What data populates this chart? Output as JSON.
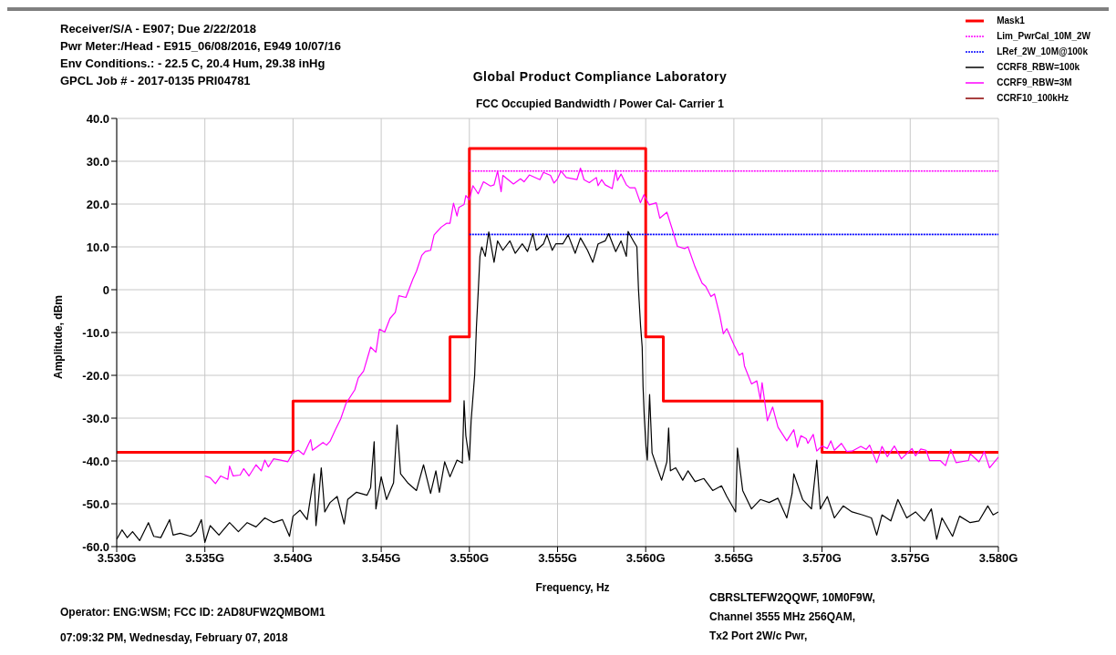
{
  "chart_data": {
    "type": "line",
    "title": "Global Product Compliance Laboratory",
    "subtitle": "FCC Occupied Bandwidth / Power Cal- Carrier 1",
    "xlabel": "Frequency, Hz",
    "ylabel": "Amplitude, dBm",
    "annotations": [
      "Receiver/S/A - E907; Due 2/22/2018",
      "Pwr Meter:/Head - E915_06/08/2016, E949 10/07/16",
      "Env Conditions.: - 22.5 C, 20.4 Hum, 29.38 inHg",
      "GPCL Job # - 2017-0135 PRI04781",
      "Operator: ENG:WSM; FCC ID: 2AD8UFW2QMBOM1",
      "07:09:32 PM, Wednesday, February 07, 2018",
      "CBRSLTEFW2QQWF, 10M0F9W,",
      "Channel 3555 MHz  256QAM,",
      "Tx2 Port  2W/c Pwr,"
    ],
    "series": [
      {
        "name": "Mask1",
        "color": "#ff0000",
        "line_style": "solid",
        "x": [
          3.53,
          3.54,
          3.54,
          3.5489,
          3.5489,
          3.55,
          3.55,
          3.56,
          3.56,
          3.561,
          3.561,
          3.57,
          3.57,
          3.58
        ],
        "values": [
          -38,
          -38,
          -26,
          -26,
          -11,
          -11,
          33,
          33,
          -11,
          -11,
          -26,
          -26,
          -38,
          -38
        ]
      },
      {
        "name": "Lim_PwrCal_10M_2W",
        "color": "#ff00ff",
        "line_style": "dotted",
        "x": [
          3.55,
          3.58
        ],
        "values": [
          27.7,
          27.7
        ]
      },
      {
        "name": "LRef_2W_10M@100k",
        "color": "#0000ff",
        "line_style": "dotted",
        "x": [
          3.55,
          3.58
        ],
        "values": [
          12.9,
          12.9
        ]
      },
      {
        "name": "CCRF8_RBW=100k",
        "color": "#000000",
        "line_style": "solid",
        "x": [
          3.53,
          3.5303,
          3.5306,
          3.5309,
          3.5313,
          3.5318,
          3.5321,
          3.5325,
          3.533,
          3.5332,
          3.5336,
          3.5342,
          3.5345,
          3.5348,
          3.535,
          3.5353,
          3.5358,
          3.5364,
          3.5369,
          3.5374,
          3.5379,
          3.5384,
          3.5389,
          3.5394,
          3.5398,
          3.54,
          3.5404,
          3.5408,
          3.5412,
          3.5413,
          3.5414,
          3.5416,
          3.5418,
          3.5421,
          3.5425,
          3.5429,
          3.5431,
          3.5436,
          3.5442,
          3.5444,
          3.5446,
          3.5447,
          3.545,
          3.5453,
          3.5457,
          3.5459,
          3.5461,
          3.5465,
          3.547,
          3.5474,
          3.5478,
          3.5481,
          3.5483,
          3.5486,
          3.5489,
          3.5493,
          3.5496,
          3.5497,
          3.5498,
          3.55,
          3.5501,
          3.5503,
          3.5504,
          3.5505,
          3.5506,
          3.5507,
          3.5509,
          3.5511,
          3.5514,
          3.5516,
          3.5519,
          3.5523,
          3.5526,
          3.553,
          3.5533,
          3.5536,
          3.5538,
          3.5542,
          3.5544,
          3.5547,
          3.5549,
          3.5553,
          3.5556,
          3.556,
          3.5563,
          3.5567,
          3.557,
          3.5573,
          3.5577,
          3.5579,
          3.5583,
          3.5586,
          3.5589,
          3.559,
          3.5593,
          3.5595,
          3.55959,
          3.55971,
          3.5598,
          3.55985,
          3.55992,
          3.56002,
          3.56009,
          3.56022,
          3.56036,
          3.5606,
          3.5609,
          3.5612,
          3.5613,
          3.5614,
          3.5617,
          3.5621,
          3.5624,
          3.5628,
          3.5633,
          3.5638,
          3.5643,
          3.5646,
          3.5651,
          3.5652,
          3.5655,
          3.566,
          3.5665,
          3.567,
          3.5675,
          3.568,
          3.5683,
          3.5684,
          3.5689,
          3.5694,
          3.5697,
          3.5699,
          3.5703,
          3.5707,
          3.5712,
          3.5717,
          3.5723,
          3.5728,
          3.5731,
          3.5734,
          3.5739,
          3.5743,
          3.5748,
          3.5753,
          3.5758,
          3.5762,
          3.5765,
          3.5768,
          3.5774,
          3.5778,
          3.5784,
          3.5789,
          3.5794,
          3.5797,
          3.58
        ],
        "values": [
          -58.3,
          -56.1,
          -57.9,
          -56.5,
          -58.6,
          -54.4,
          -57.6,
          -57.9,
          -53.7,
          -57.3,
          -56.9,
          -57.6,
          -56.5,
          -53.7,
          -59,
          -55.1,
          -57.3,
          -54.4,
          -56.5,
          -54.4,
          -55.4,
          -53.3,
          -54.4,
          -53.7,
          -57.6,
          -52.9,
          -51.5,
          -53.7,
          -43,
          -55.1,
          -51.2,
          -41.6,
          -51.9,
          -49.7,
          -48.3,
          -54.7,
          -49,
          -47.3,
          -48,
          -46.2,
          -35.5,
          -51.2,
          -43.7,
          -49,
          -45.1,
          -31.6,
          -43,
          -45.1,
          -46.9,
          -40.9,
          -47.6,
          -42.3,
          -47.3,
          -40.2,
          -43.7,
          -39.8,
          -40.5,
          -25.9,
          -34.1,
          -39.8,
          -30.6,
          -19.9,
          -8.6,
          -0.6,
          7.8,
          10,
          7.8,
          13.5,
          6.4,
          11.4,
          9.2,
          11.4,
          8.5,
          10.7,
          8.9,
          13.1,
          9.2,
          10.7,
          12.8,
          9.2,
          10.7,
          10.7,
          12.8,
          8.5,
          12.1,
          9.2,
          6.4,
          10.7,
          11.4,
          13.1,
          8.9,
          11.4,
          7.8,
          13.6,
          11.4,
          10,
          0.1,
          -8.5,
          -13.4,
          -22.7,
          -29.8,
          -36.9,
          -39.8,
          -24.5,
          -38.1,
          -41,
          -44.5,
          -40.2,
          -32.3,
          -42.3,
          -41.6,
          -44.5,
          -42.3,
          -44.8,
          -44.1,
          -46.9,
          -45.8,
          -48.3,
          -51.9,
          -37,
          -46.9,
          -51.2,
          -49,
          -49.7,
          -48.7,
          -53.3,
          -47.6,
          -43,
          -49,
          -51.2,
          -39.8,
          -51.2,
          -48.3,
          -53.3,
          -50.5,
          -51.9,
          -52.6,
          -53.3,
          -57.3,
          -52.6,
          -54,
          -49,
          -53.3,
          -51.9,
          -54,
          -51.2,
          -58.3,
          -53.3,
          -57.6,
          -52.9,
          -54.4,
          -54,
          -50.5,
          -52.6,
          -51.9
        ]
      },
      {
        "name": "CCRF9_RBW=3M",
        "color": "#ff00ff",
        "line_style": "solid",
        "x": [
          3.535,
          3.5353,
          3.5356,
          3.5359,
          3.5363,
          3.5364,
          3.5366,
          3.537,
          3.5372,
          3.5375,
          3.5379,
          3.5382,
          3.5384,
          3.5386,
          3.5389,
          3.5393,
          3.5397,
          3.54,
          3.5403,
          3.5406,
          3.541,
          3.5411,
          3.5417,
          3.5419,
          3.5421,
          3.5424,
          3.5427,
          3.543,
          3.5435,
          3.5437,
          3.544,
          3.5444,
          3.5447,
          3.5449,
          3.5452,
          3.5455,
          3.5458,
          3.546,
          3.5464,
          3.5468,
          3.547,
          3.5473,
          3.5475,
          3.5478,
          3.548,
          3.5484,
          3.5487,
          3.5489,
          3.5491,
          3.5493,
          3.5494,
          3.5497,
          3.5498,
          3.55,
          3.5502,
          3.5505,
          3.5508,
          3.5512,
          3.5514,
          3.5516,
          3.5518,
          3.5519,
          3.5525,
          3.5529,
          3.5531,
          3.5534,
          3.554,
          3.5542,
          3.5546,
          3.5548,
          3.555,
          3.5552,
          3.5555,
          3.5561,
          3.5563,
          3.5565,
          3.5568,
          3.5572,
          3.5573,
          3.5575,
          3.5577,
          3.5581,
          3.5583,
          3.5584,
          3.5586,
          3.5589,
          3.5591,
          3.5594,
          3.5597,
          3.5599,
          3.5602,
          3.5606,
          3.5608,
          3.5612,
          3.5615,
          3.5618,
          3.5622,
          3.5624,
          3.5628,
          3.5632,
          3.5634,
          3.5637,
          3.5639,
          3.5642,
          3.5644,
          3.5646,
          3.565,
          3.5653,
          3.5655,
          3.5656,
          3.566,
          3.5663,
          3.5665,
          3.5666,
          3.5669,
          3.5672,
          3.5675,
          3.568,
          3.5684,
          3.5686,
          3.5688,
          3.5691,
          3.5692,
          3.5695,
          3.5697,
          3.57,
          3.5703,
          3.5705,
          3.5707,
          3.5711,
          3.5714,
          3.5717,
          3.5722,
          3.5725,
          3.5727,
          3.5731,
          3.5734,
          3.5737,
          3.5741,
          3.5745,
          3.5751,
          3.5753,
          3.5756,
          3.5759,
          3.5761,
          3.5767,
          3.577,
          3.5773,
          3.5776,
          3.5783,
          3.5784,
          3.5789,
          3.5792,
          3.5795,
          3.58
        ],
        "values": [
          -43.5,
          -43.9,
          -45.3,
          -43.5,
          -44.3,
          -41.2,
          -43.5,
          -43.3,
          -41.8,
          -43.5,
          -40.9,
          -42.3,
          -39.8,
          -41.4,
          -39.5,
          -39.8,
          -40.2,
          -38,
          -37.5,
          -38.5,
          -35,
          -37.5,
          -35.7,
          -36.3,
          -35.4,
          -32.7,
          -30.2,
          -26.6,
          -23.4,
          -20.6,
          -19,
          -13.4,
          -14.6,
          -9.2,
          -9.9,
          -6.7,
          -5.3,
          -1.4,
          -1.8,
          2.5,
          4.3,
          8,
          8.9,
          9.2,
          12.8,
          14.6,
          15.5,
          15.5,
          20.2,
          17.2,
          19.2,
          19.9,
          22,
          21,
          24.3,
          22.4,
          25.2,
          24.2,
          24.5,
          27.7,
          22.9,
          26.7,
          24.7,
          25.9,
          25.2,
          26.8,
          25.7,
          27.4,
          26.7,
          24.9,
          25.9,
          27.7,
          26.2,
          25.7,
          28.4,
          25.7,
          25,
          26.2,
          24.3,
          25.7,
          24.5,
          23.6,
          27.9,
          25.5,
          27,
          24.5,
          23.8,
          23.8,
          20.3,
          22.2,
          19.8,
          20.3,
          16.7,
          18.1,
          14.2,
          10.1,
          9.6,
          10,
          5.3,
          1.5,
          0.8,
          -1.6,
          -1,
          -6,
          -10.3,
          -9.1,
          -12.8,
          -15.3,
          -14.8,
          -17.8,
          -22,
          -21.3,
          -25.6,
          -21.7,
          -30.6,
          -27.4,
          -32.1,
          -35.3,
          -32.7,
          -36.8,
          -34.1,
          -34.8,
          -35.9,
          -33.8,
          -37.7,
          -36.5,
          -37.1,
          -35.3,
          -37.5,
          -35.9,
          -37.8,
          -37.7,
          -36.6,
          -37.3,
          -36.3,
          -40.4,
          -36.6,
          -39,
          -36.5,
          -39.5,
          -37.1,
          -38.8,
          -37.2,
          -37.5,
          -39.9,
          -39.9,
          -41.1,
          -37.3,
          -40.4,
          -39.9,
          -38.3,
          -40.2,
          -37.8,
          -41.6,
          -39.1
        ]
      },
      {
        "name": "CCRF10_100kHz",
        "color": "#8b0000",
        "line_style": "solid"
      }
    ],
    "xlim": [
      3.53,
      3.58
    ],
    "xticks": [
      {
        "value": 3.53,
        "label": "3.530G"
      },
      {
        "value": 3.535,
        "label": "3.535G"
      },
      {
        "value": 3.54,
        "label": "3.540G"
      },
      {
        "value": 3.545,
        "label": "3.545G"
      },
      {
        "value": 3.55,
        "label": "3.550G"
      },
      {
        "value": 3.555,
        "label": "3.555G"
      },
      {
        "value": 3.56,
        "label": "3.560G"
      },
      {
        "value": 3.565,
        "label": "3.565G"
      },
      {
        "value": 3.57,
        "label": "3.570G"
      },
      {
        "value": 3.575,
        "label": "3.575G"
      },
      {
        "value": 3.58,
        "label": "3.580G"
      }
    ],
    "ylim": [
      -60,
      40
    ],
    "yticks": [
      {
        "value": -60,
        "label": "-60.0"
      },
      {
        "value": -50,
        "label": "-50.0"
      },
      {
        "value": -40,
        "label": "-40.0"
      },
      {
        "value": -30,
        "label": "-30.0"
      },
      {
        "value": -20,
        "label": "-20.0"
      },
      {
        "value": -10,
        "label": "-10.0"
      },
      0,
      {
        "value": 10,
        "label": "10.0"
      },
      {
        "value": 20,
        "label": "20.0"
      },
      {
        "value": 30,
        "label": "30.0"
      },
      {
        "value": 40,
        "label": "40.0"
      }
    ],
    "grid": true,
    "legend": "top right",
    "marker": "none"
  }
}
